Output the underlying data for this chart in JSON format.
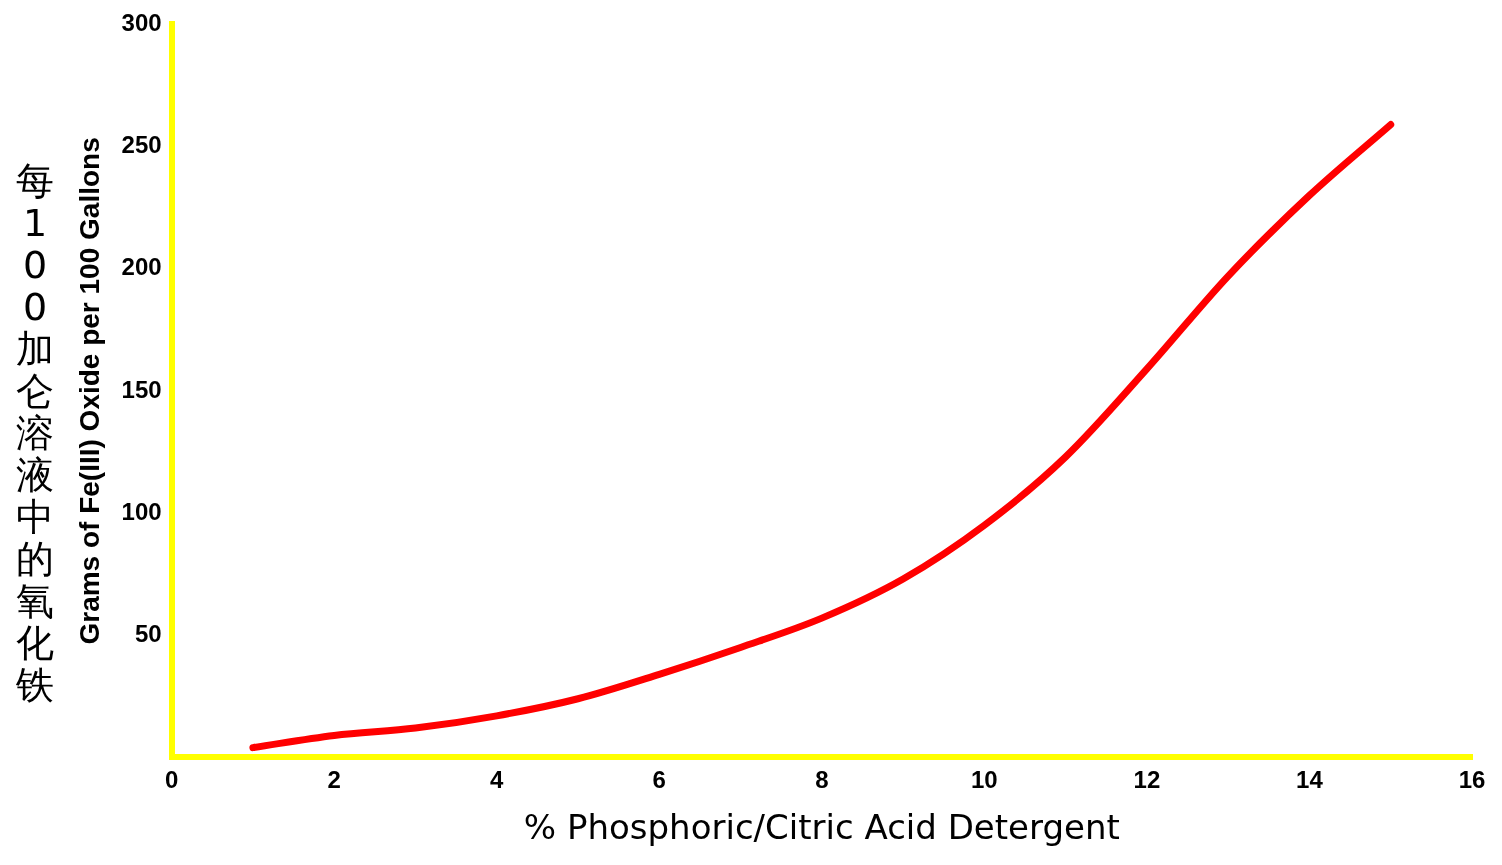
{
  "chart_data": {
    "type": "line",
    "xlabel": "% Phosphoric/Citric Acid Detergent",
    "ylabel": "Grams of Fe(III) Oxide per 100 Gallons",
    "annotations": [
      "每100加仑溶液中的氧化铁"
    ],
    "x": [
      1,
      2,
      3,
      4,
      5,
      6,
      7,
      8,
      9,
      10,
      11,
      12,
      13,
      14,
      15
    ],
    "series": [
      {
        "color": "#ff0000",
        "values": [
          4,
          9,
          12,
          17,
          24,
          34,
          45,
          57,
          73,
          95,
          123,
          159,
          197,
          230,
          259
        ]
      }
    ],
    "xlim": [
      0,
      16
    ],
    "xticks": [
      0,
      2,
      4,
      6,
      8,
      10,
      12,
      14,
      16
    ],
    "ylim": [
      0,
      300
    ],
    "yticks": [
      50,
      100,
      150,
      200,
      250,
      300
    ],
    "grid": false,
    "legend": false,
    "marker": "none",
    "line_style": "solid"
  }
}
